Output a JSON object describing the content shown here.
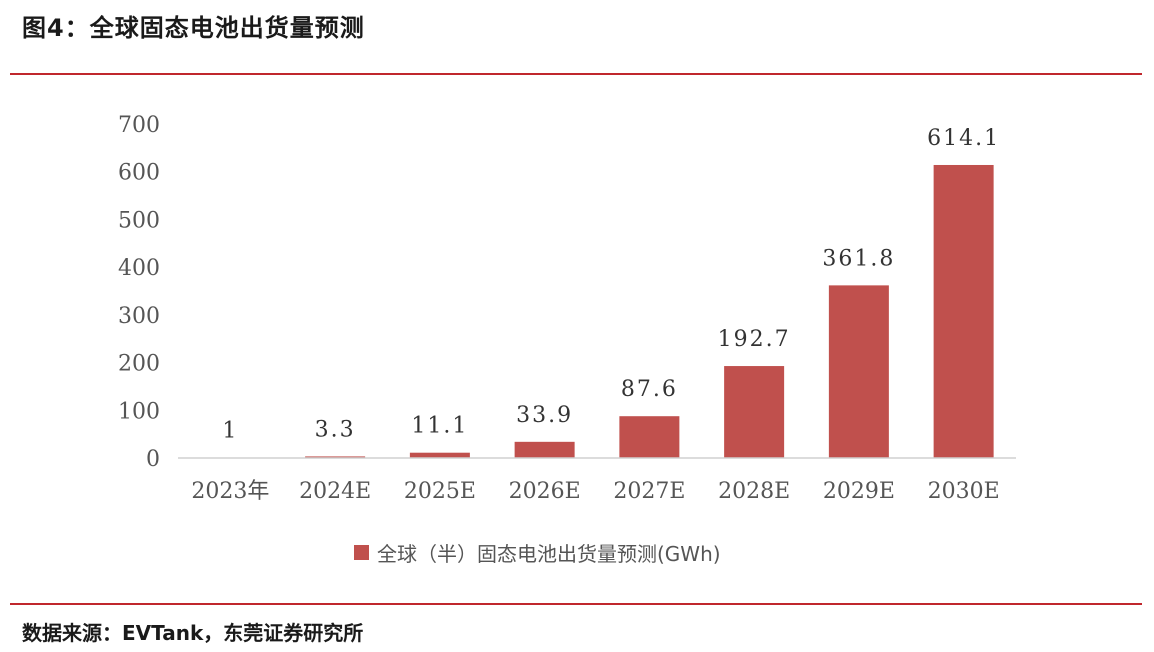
{
  "header": {
    "title": "图4：全球固态电池出货量预测"
  },
  "footer": {
    "source": "数据来源：EVTank，东莞证券研究所"
  },
  "colors": {
    "bar": "#c0504d",
    "rule": "#c0272d"
  },
  "chart_data": {
    "type": "bar",
    "categories": [
      "2023年",
      "2024E",
      "2025E",
      "2026E",
      "2027E",
      "2028E",
      "2029E",
      "2030E"
    ],
    "series": [
      {
        "name": "全球（半）固态电池出货量预测(GWh)",
        "values": [
          1,
          3.3,
          11.1,
          33.9,
          87.6,
          192.7,
          361.8,
          614.1
        ]
      }
    ],
    "data_labels": [
      "1",
      "3.3",
      "11.1",
      "33.9",
      "87.6",
      "192.7",
      "361.8",
      "614.1"
    ],
    "yticks": [
      "0",
      "100",
      "200",
      "300",
      "400",
      "500",
      "600",
      "700"
    ],
    "ylim": [
      0,
      700
    ],
    "title": "",
    "xlabel": "",
    "ylabel": "",
    "grid": false,
    "legend_position": "bottom"
  }
}
